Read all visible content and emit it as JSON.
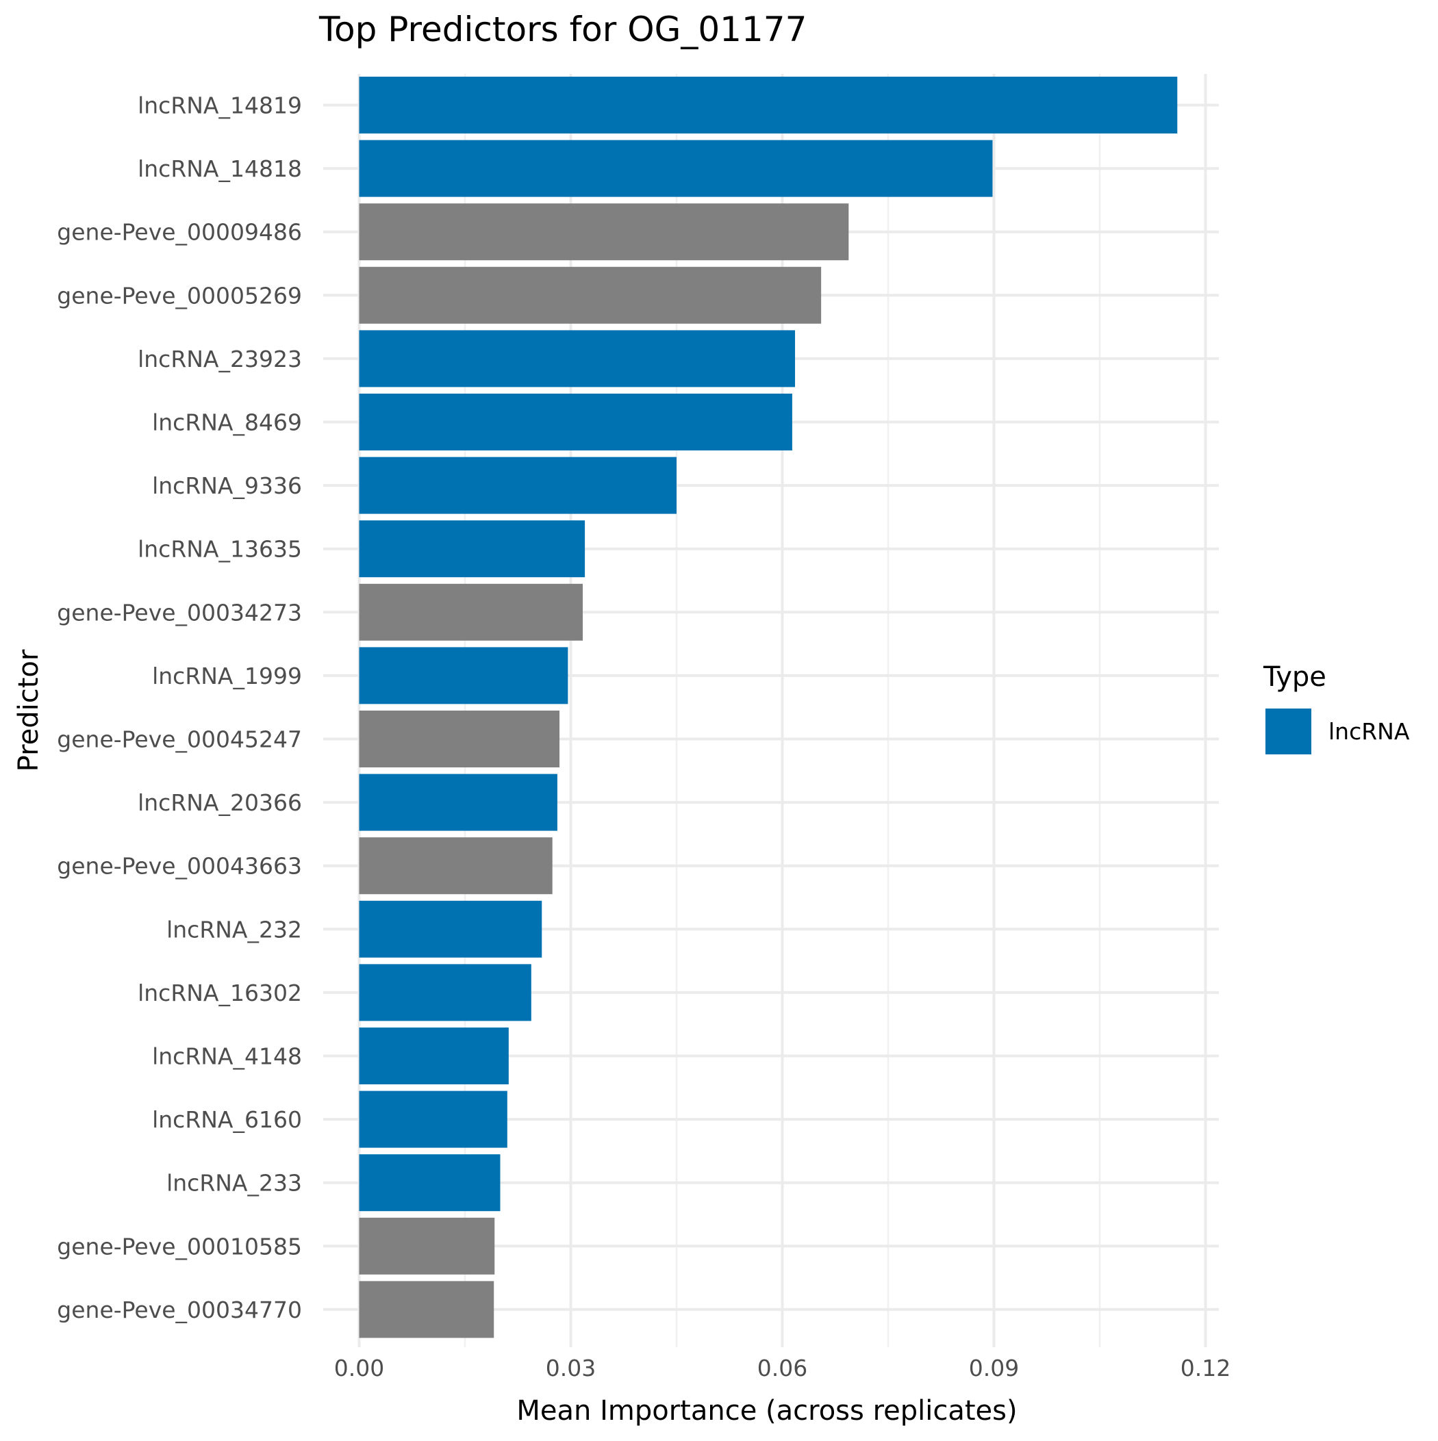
{
  "chart_data": {
    "type": "bar",
    "orientation": "horizontal",
    "title": "Top Predictors for OG_01177",
    "xlabel": "Mean Importance (across replicates)",
    "ylabel": "Predictor",
    "xlim": [
      0,
      0.12
    ],
    "x_ticks": [
      0.0,
      0.03,
      0.06,
      0.09,
      0.12
    ],
    "x_tick_labels": [
      "0.00",
      "0.03",
      "0.06",
      "0.09",
      "0.12"
    ],
    "grid": true,
    "categories": [
      "lncRNA_14819",
      "lncRNA_14818",
      "gene-Peve_00009486",
      "gene-Peve_00005269",
      "lncRNA_23923",
      "lncRNA_8469",
      "lncRNA_9336",
      "lncRNA_13635",
      "gene-Peve_00034273",
      "lncRNA_1999",
      "gene-Peve_00045247",
      "lncRNA_20366",
      "gene-Peve_00043663",
      "lncRNA_232",
      "lncRNA_16302",
      "lncRNA_4148",
      "lncRNA_6160",
      "lncRNA_233",
      "gene-Peve_00010585",
      "gene-Peve_00034770"
    ],
    "values": [
      0.116,
      0.0898,
      0.0694,
      0.0655,
      0.0618,
      0.0614,
      0.045,
      0.032,
      0.0317,
      0.0296,
      0.0284,
      0.0281,
      0.0274,
      0.0259,
      0.0244,
      0.0212,
      0.021,
      0.02,
      0.0192,
      0.0191
    ],
    "bar_types": [
      "lncRNA",
      "lncRNA",
      "gene",
      "gene",
      "lncRNA",
      "lncRNA",
      "lncRNA",
      "lncRNA",
      "gene",
      "lncRNA",
      "gene",
      "lncRNA",
      "gene",
      "lncRNA",
      "lncRNA",
      "lncRNA",
      "lncRNA",
      "lncRNA",
      "gene",
      "gene"
    ],
    "type_colors": {
      "lncRNA": "#0072B2",
      "gene": "#808080"
    },
    "legend": {
      "title": "Type",
      "placement": "right",
      "entries": [
        {
          "label": "lncRNA",
          "color": "#0072B2"
        }
      ]
    }
  }
}
